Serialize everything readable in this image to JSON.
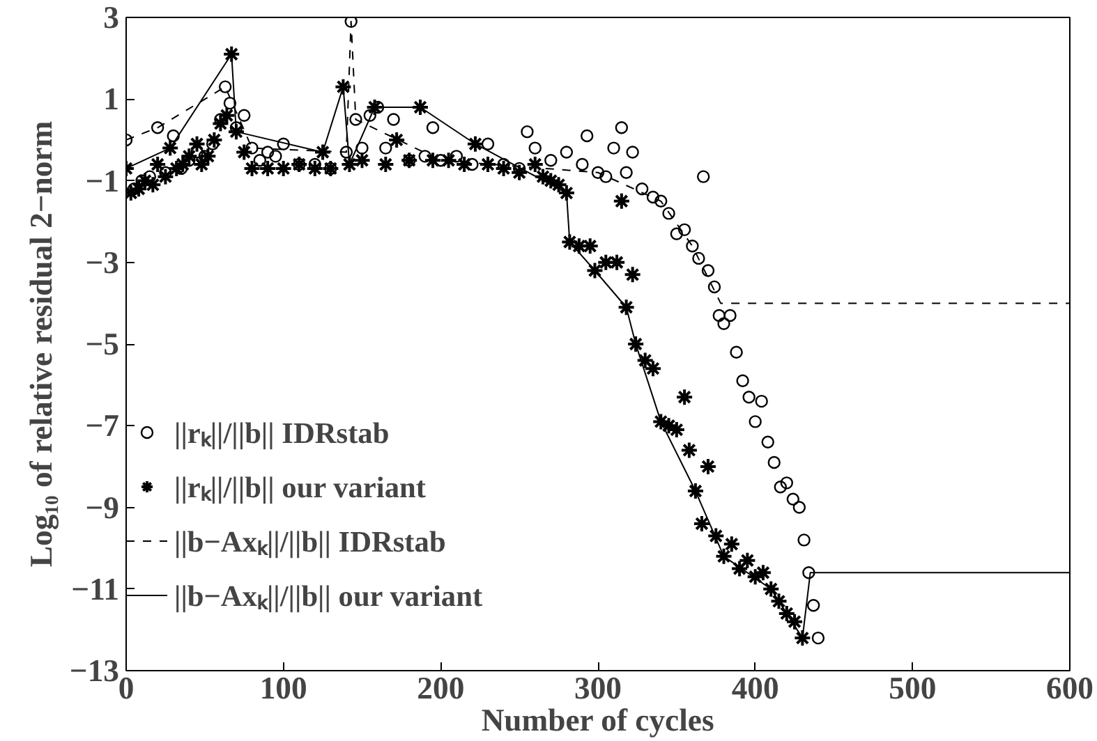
{
  "chart_data": {
    "type": "scatter",
    "xlabel": "Number of cycles",
    "ylabel": "Log₁₀ of relative residual 2−norm",
    "xlim": [
      0,
      600
    ],
    "ylim": [
      -13,
      3
    ],
    "xticks": [
      0,
      100,
      200,
      300,
      400,
      500,
      600
    ],
    "yticks": [
      -13,
      -11,
      -9,
      -7,
      -5,
      -3,
      -1,
      1,
      3
    ],
    "grid": false,
    "legend": "left",
    "series": [
      {
        "name": "||rₖ||/||b|| IDRstab",
        "marker": "circle",
        "color": "#000000",
        "x": [
          0,
          5,
          10,
          15,
          20,
          25,
          30,
          35,
          40,
          45,
          50,
          55,
          60,
          63,
          66,
          70,
          75,
          80,
          85,
          90,
          95,
          100,
          110,
          120,
          130,
          140,
          143,
          146,
          150,
          155,
          160,
          165,
          170,
          180,
          190,
          195,
          200,
          210,
          220,
          230,
          240,
          250,
          255,
          260,
          270,
          280,
          290,
          293,
          300,
          305,
          310,
          315,
          318,
          322,
          328,
          335,
          340,
          345,
          350,
          355,
          360,
          364,
          367,
          370,
          374,
          377,
          380,
          384,
          388,
          392,
          396,
          400,
          404,
          408,
          412,
          416,
          420,
          424,
          428,
          431,
          434,
          437,
          440
        ],
        "values": [
          0,
          -1.2,
          -1.0,
          -0.9,
          0.3,
          -0.8,
          0.1,
          -0.7,
          -0.5,
          -0.3,
          -0.4,
          -0.1,
          0.5,
          1.3,
          0.9,
          0.3,
          0.6,
          -0.2,
          -0.5,
          -0.3,
          -0.4,
          -0.1,
          -0.6,
          -0.6,
          -0.7,
          -0.3,
          2.9,
          0.5,
          -0.2,
          0.6,
          0.8,
          -0.2,
          0.5,
          -0.5,
          -0.4,
          0.3,
          -0.5,
          -0.4,
          -0.6,
          -0.1,
          -0.6,
          -0.7,
          0.2,
          -0.2,
          -0.5,
          -0.3,
          -0.6,
          0.1,
          -0.8,
          -0.9,
          -0.2,
          0.3,
          -0.8,
          -0.3,
          -1.2,
          -1.4,
          -1.5,
          -1.8,
          -2.3,
          -2.2,
          -2.6,
          -2.9,
          -0.9,
          -3.2,
          -3.6,
          -4.3,
          -4.5,
          -4.3,
          -5.2,
          -5.9,
          -6.3,
          -6.9,
          -6.4,
          -7.4,
          -7.9,
          -8.5,
          -8.4,
          -8.8,
          -9.0,
          -9.8,
          -10.6,
          -11.4,
          -12.2
        ]
      },
      {
        "name": "||rₖ||/||b|| our variant",
        "marker": "cross",
        "color": "#000000",
        "x": [
          0,
          3,
          8,
          12,
          17,
          20,
          25,
          28,
          32,
          36,
          40,
          45,
          48,
          52,
          56,
          60,
          64,
          67,
          70,
          75,
          80,
          90,
          100,
          110,
          120,
          125,
          130,
          138,
          142,
          150,
          158,
          165,
          172,
          180,
          187,
          195,
          205,
          215,
          222,
          230,
          240,
          250,
          260,
          265,
          270,
          275,
          280,
          282,
          288,
          295,
          298,
          305,
          312,
          315,
          318,
          322,
          324,
          330,
          335,
          340,
          345,
          350,
          355,
          358,
          362,
          366,
          370,
          375,
          380,
          385,
          390,
          395,
          400,
          405,
          410,
          415,
          420,
          425,
          430
        ],
        "values": [
          -0.7,
          -1.3,
          -1.2,
          -1.0,
          -1.1,
          -0.6,
          -0.9,
          -0.2,
          -0.7,
          -0.6,
          -0.4,
          -0.1,
          -0.6,
          -0.4,
          0.0,
          0.4,
          0.6,
          2.1,
          0.2,
          -0.3,
          -0.7,
          -0.7,
          -0.7,
          -0.6,
          -0.7,
          -0.3,
          -0.7,
          1.3,
          -0.6,
          -0.5,
          0.8,
          -0.6,
          0.0,
          -0.5,
          0.8,
          -0.5,
          -0.5,
          -0.6,
          -0.1,
          -0.6,
          -0.7,
          -0.8,
          -0.6,
          -0.9,
          -1.0,
          -1.1,
          -1.3,
          -2.5,
          -2.6,
          -2.6,
          -3.2,
          -3.0,
          -3.0,
          -1.5,
          -4.1,
          -3.3,
          -5.0,
          -5.4,
          -5.6,
          -6.9,
          -7.0,
          -7.1,
          -6.3,
          -7.6,
          -8.6,
          -9.4,
          -8.0,
          -9.7,
          -10.2,
          -9.9,
          -10.5,
          -10.3,
          -10.7,
          -10.6,
          -11.0,
          -11.3,
          -11.6,
          -11.8,
          -12.2
        ]
      },
      {
        "name": "||b−Axₖ||/||b|| IDRstab",
        "type": "line",
        "line_style": "dashed",
        "color": "#000000",
        "x": [
          0,
          20,
          63,
          80,
          140,
          143,
          146,
          200,
          300,
          340,
          360,
          378,
          600
        ],
        "values": [
          0,
          0.3,
          1.3,
          -0.2,
          -0.3,
          2.9,
          0.5,
          -0.5,
          -0.8,
          -1.5,
          -2.6,
          -4.0,
          -4.0
        ]
      },
      {
        "name": "||b−Axₖ||/||b|| our variant",
        "type": "line",
        "line_style": "solid",
        "color": "#000000",
        "x": [
          0,
          28,
          67,
          70,
          125,
          138,
          142,
          158,
          187,
          222,
          280,
          282,
          298,
          318,
          324,
          340,
          362,
          380,
          410,
          430,
          435,
          600
        ],
        "values": [
          -0.7,
          -0.2,
          2.1,
          0.2,
          -0.3,
          1.3,
          -0.6,
          0.8,
          0.8,
          -0.1,
          -1.3,
          -2.5,
          -3.2,
          -4.1,
          -5.0,
          -6.9,
          -8.6,
          -10.2,
          -11.0,
          -12.2,
          -10.6,
          -10.6
        ]
      }
    ]
  }
}
